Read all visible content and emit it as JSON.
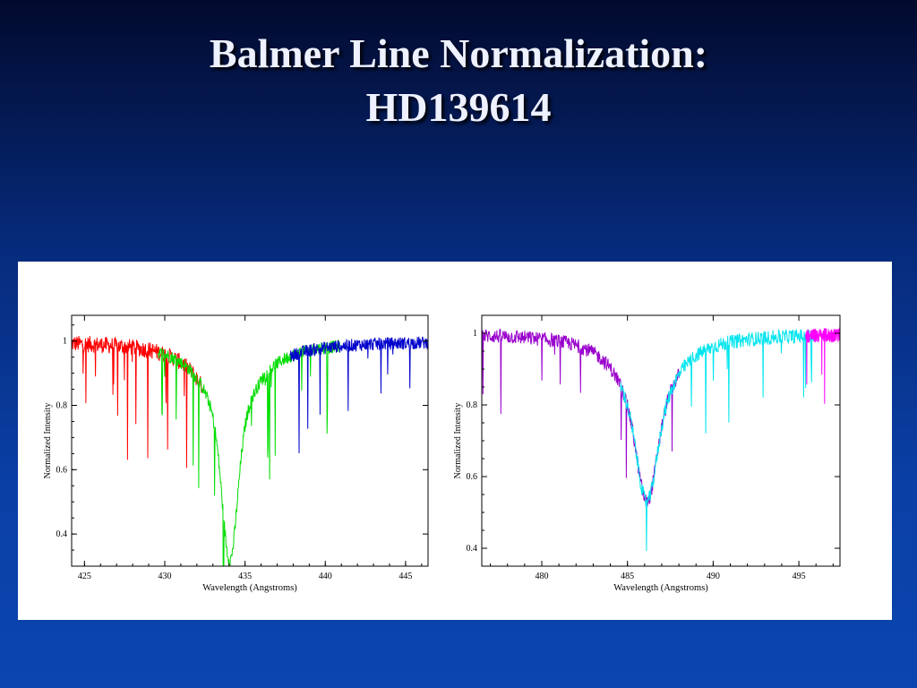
{
  "slide": {
    "title_line1": "Balmer Line Normalization:",
    "title_line2": "HD139614"
  },
  "chart_data": [
    {
      "type": "line",
      "title": "",
      "xlabel": "Wavelength (Angstroms)",
      "ylabel": "Normalized Intensity",
      "xlim": [
        424.2,
        446.4
      ],
      "ylim": [
        0.3,
        1.08
      ],
      "xticks": [
        425,
        430,
        435,
        440,
        445
      ],
      "xtick_labels": [
        "425",
        "430",
        "435",
        "440",
        "445"
      ],
      "yticks": [
        0.4,
        0.6,
        0.8,
        1
      ],
      "ytick_labels": [
        "0.4",
        "0.6",
        "0.8",
        "1"
      ],
      "line_center": 434.05,
      "min_intensity": 0.32,
      "series": [
        {
          "color": "#ff0000",
          "x_range": [
            424.2,
            432.4
          ]
        },
        {
          "color": "#00dd00",
          "x_range": [
            429.6,
            440.9
          ]
        },
        {
          "color": "#0000cc",
          "x_range": [
            437.8,
            446.4
          ]
        }
      ]
    },
    {
      "type": "line",
      "title": "",
      "xlabel": "Wavelength (Angstroms)",
      "ylabel": "Normalized Intensity",
      "xlim": [
        476.5,
        497.4
      ],
      "ylim": [
        0.35,
        1.05
      ],
      "xticks": [
        480,
        485,
        490,
        495
      ],
      "xtick_labels": [
        "480",
        "485",
        "490",
        "495"
      ],
      "yticks": [
        0.4,
        0.6,
        0.8,
        1
      ],
      "ytick_labels": [
        "0.4",
        "0.6",
        "0.8",
        "1"
      ],
      "line_center": 486.13,
      "min_intensity": 0.53,
      "series": [
        {
          "color": "#9900cc",
          "x_range": [
            476.5,
            488.0
          ]
        },
        {
          "color": "#00e5ee",
          "x_range": [
            484.6,
            496.0
          ]
        },
        {
          "color": "#ff00ff",
          "x_range": [
            495.4,
            497.4
          ]
        }
      ]
    }
  ]
}
